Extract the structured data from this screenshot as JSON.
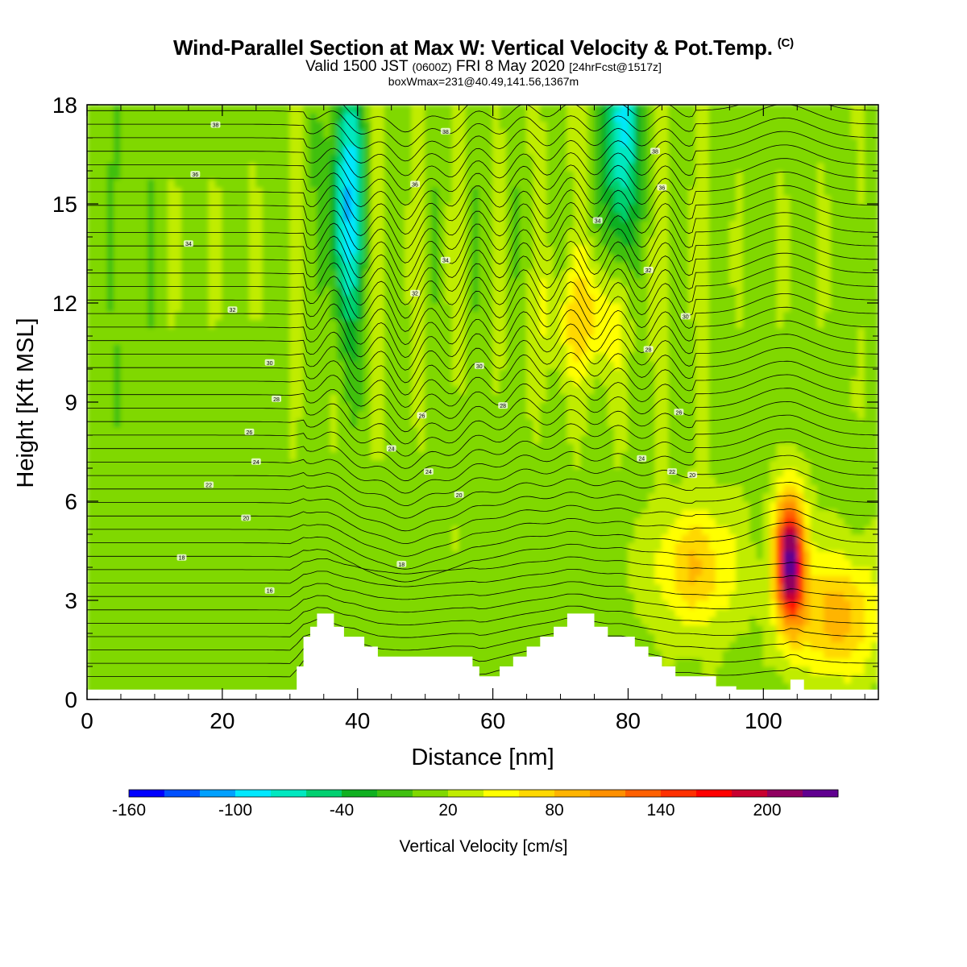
{
  "title": {
    "main": "Wind-Parallel Section at Max W: Vertical Velocity & Pot.Temp.",
    "copyright": "(C)",
    "valid_prefix": "Valid 1500 JST",
    "valid_zulu": "(0600Z)",
    "valid_date": "FRI 8 May 2020",
    "forecast_info": "[24hrFcst@1517z]",
    "box_info": "boxWmax=231@40.49,141.56,1367m"
  },
  "chart_data": {
    "type": "heatmap",
    "xlabel": "Distance [nm]",
    "ylabel": "Height [Kft MSL]",
    "xlim": [
      0,
      117
    ],
    "ylim": [
      0,
      18
    ],
    "x_ticks": [
      0,
      20,
      40,
      60,
      80,
      100
    ],
    "y_ticks": [
      0,
      3,
      6,
      9,
      12,
      15,
      18
    ],
    "colorbar": {
      "label": "Vertical Velocity [cm/s]",
      "ticks": [
        "-160",
        "-100",
        "-40",
        "20",
        "80",
        "140",
        "200"
      ],
      "tick_positions": [
        -160,
        -100,
        -40,
        20,
        80,
        140,
        200
      ],
      "min": -160,
      "step": 20,
      "colors": [
        "#0000ff",
        "#0050ff",
        "#00a0ff",
        "#00e8ff",
        "#00e8c0",
        "#00d070",
        "#10b020",
        "#40c010",
        "#80d800",
        "#c0ec00",
        "#ffff00",
        "#ffd800",
        "#ffb400",
        "#ff9000",
        "#ff6000",
        "#ff3000",
        "#ff0000",
        "#c80030",
        "#900060",
        "#600090"
      ]
    },
    "vertical_velocity_features": [
      {
        "x": 104,
        "z": 4.2,
        "w": 231
      },
      {
        "x": 90,
        "z": 4.0,
        "w": 80
      },
      {
        "x": 74,
        "z": 11.5,
        "w": 70
      },
      {
        "x": 38.5,
        "z": 15,
        "w": -100
      },
      {
        "x": 79,
        "z": 17.5,
        "w": -100
      },
      {
        "x": 111,
        "z": 2.5,
        "w": 90
      }
    ],
    "terrain_profile": {
      "x": [
        0,
        30,
        31,
        32,
        33,
        34,
        35.5,
        36.5,
        38,
        39.5,
        41,
        43,
        46,
        49,
        54,
        57,
        58,
        59,
        61,
        63,
        65,
        67,
        69,
        71,
        73,
        75,
        77,
        79,
        81,
        83,
        85,
        87,
        89,
        93,
        96,
        99,
        102,
        103,
        104,
        105,
        106,
        107,
        117
      ],
      "z": [
        0.3,
        0.3,
        1.0,
        1.9,
        2.2,
        2.6,
        2.6,
        2.2,
        1.9,
        1.9,
        1.6,
        1.3,
        1.3,
        1.3,
        1.3,
        1.0,
        0.7,
        0.7,
        1.0,
        1.3,
        1.6,
        1.9,
        2.2,
        2.6,
        2.6,
        2.2,
        1.9,
        1.9,
        1.6,
        1.3,
        1.0,
        0.7,
        0.7,
        0.4,
        0.3,
        0.3,
        0.3,
        0.3,
        0.6,
        0.6,
        0.3,
        0.3,
        0.3
      ]
    },
    "potential_temperature_labels": [
      {
        "text": "38",
        "x": 19,
        "z": 17.4
      },
      {
        "text": "36",
        "x": 16,
        "z": 15.9
      },
      {
        "text": "34",
        "x": 15,
        "z": 13.8
      },
      {
        "text": "32",
        "x": 21.5,
        "z": 11.8
      },
      {
        "text": "30",
        "x": 27,
        "z": 10.2
      },
      {
        "text": "28",
        "x": 28,
        "z": 9.1
      },
      {
        "text": "26",
        "x": 24,
        "z": 8.1
      },
      {
        "text": "24",
        "x": 25,
        "z": 7.2
      },
      {
        "text": "22",
        "x": 18,
        "z": 6.5
      },
      {
        "text": "20",
        "x": 23.5,
        "z": 5.5
      },
      {
        "text": "18",
        "x": 14,
        "z": 4.3
      },
      {
        "text": "16",
        "x": 27,
        "z": 3.3
      },
      {
        "text": "38",
        "x": 53,
        "z": 17.2
      },
      {
        "text": "36",
        "x": 48.5,
        "z": 15.6
      },
      {
        "text": "34",
        "x": 53,
        "z": 13.3
      },
      {
        "text": "32",
        "x": 48.5,
        "z": 12.3
      },
      {
        "text": "30",
        "x": 58,
        "z": 10.1
      },
      {
        "text": "28",
        "x": 61.5,
        "z": 8.9
      },
      {
        "text": "26",
        "x": 49.5,
        "z": 8.6
      },
      {
        "text": "24",
        "x": 45,
        "z": 7.6
      },
      {
        "text": "24",
        "x": 50.5,
        "z": 6.9
      },
      {
        "text": "20",
        "x": 55,
        "z": 6.2
      },
      {
        "text": "18",
        "x": 46.5,
        "z": 4.1
      },
      {
        "text": "38",
        "x": 84,
        "z": 16.6
      },
      {
        "text": "36",
        "x": 85,
        "z": 15.5
      },
      {
        "text": "34",
        "x": 75.5,
        "z": 14.5
      },
      {
        "text": "32",
        "x": 83,
        "z": 13.0
      },
      {
        "text": "30",
        "x": 88.5,
        "z": 11.6
      },
      {
        "text": "28",
        "x": 83,
        "z": 10.6
      },
      {
        "text": "26",
        "x": 87.5,
        "z": 8.7
      },
      {
        "text": "24",
        "x": 82,
        "z": 7.3
      },
      {
        "text": "22",
        "x": 86.5,
        "z": 6.9
      },
      {
        "text": "20",
        "x": 89.5,
        "z": 6.8
      }
    ]
  }
}
